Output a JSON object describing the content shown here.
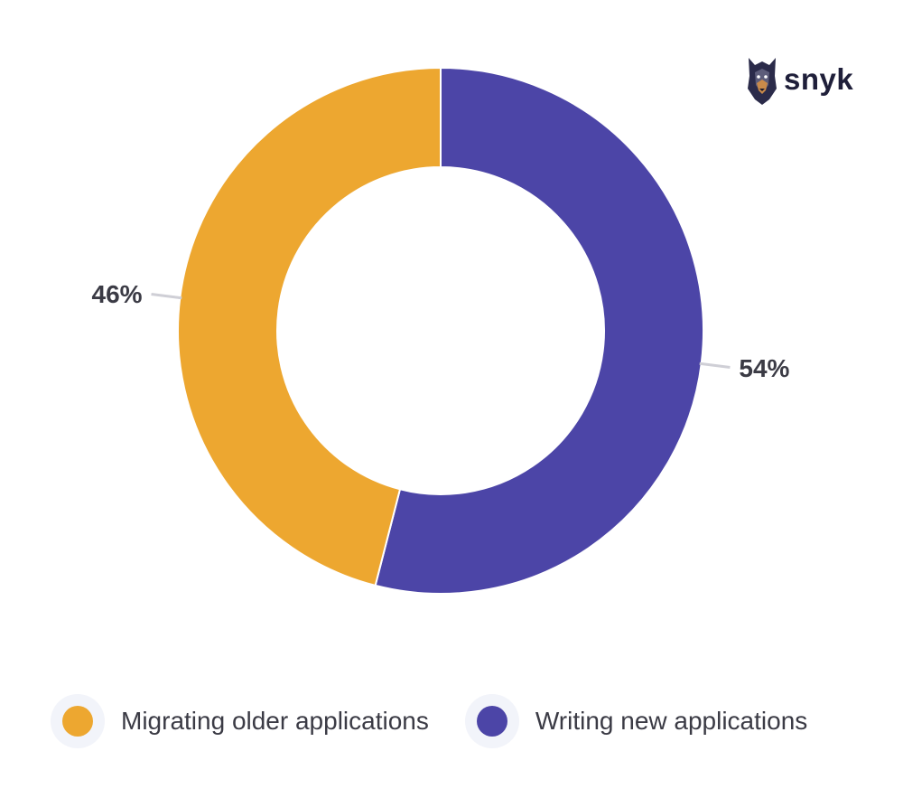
{
  "chart_data": {
    "type": "pie",
    "variant": "donut",
    "title": "",
    "slices": [
      {
        "label": "Writing new applications",
        "value": 54,
        "display": "54%",
        "color": "#4c45a7"
      },
      {
        "label": "Migrating older applications",
        "value": 46,
        "display": "46%",
        "color": "#eda730"
      }
    ],
    "legend_position": "bottom",
    "legend": [
      {
        "label": "Migrating older applications",
        "color": "#eda730"
      },
      {
        "label": "Writing new applications",
        "color": "#4c45a7"
      }
    ]
  },
  "brand": {
    "logo_text": "snyk",
    "icon": "doberman-icon"
  }
}
